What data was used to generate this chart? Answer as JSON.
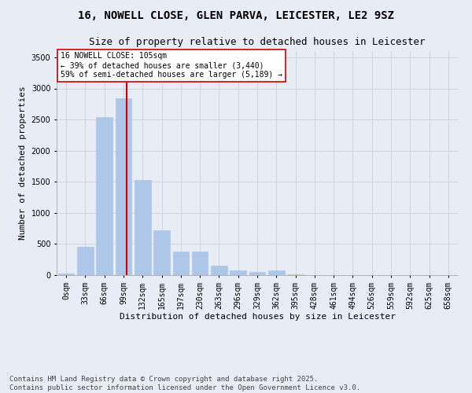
{
  "title": "16, NOWELL CLOSE, GLEN PARVA, LEICESTER, LE2 9SZ",
  "subtitle": "Size of property relative to detached houses in Leicester",
  "xlabel": "Distribution of detached houses by size in Leicester",
  "ylabel": "Number of detached properties",
  "bar_labels": [
    "0sqm",
    "33sqm",
    "66sqm",
    "99sqm",
    "132sqm",
    "165sqm",
    "197sqm",
    "230sqm",
    "263sqm",
    "296sqm",
    "329sqm",
    "362sqm",
    "395sqm",
    "428sqm",
    "461sqm",
    "494sqm",
    "526sqm",
    "559sqm",
    "592sqm",
    "625sqm",
    "658sqm"
  ],
  "bar_values": [
    20,
    460,
    2540,
    2840,
    1530,
    720,
    380,
    380,
    150,
    75,
    50,
    80,
    10,
    5,
    5,
    5,
    5,
    5,
    5,
    5,
    5
  ],
  "bar_color": "#aec6e8",
  "bar_edge_color": "#aec6e8",
  "grid_color": "#c8d0df",
  "background_color": "#e8edf5",
  "vline_x": 3.18,
  "vline_color": "#cc0000",
  "annotation_text": "16 NOWELL CLOSE: 105sqm\n← 39% of detached houses are smaller (3,440)\n59% of semi-detached houses are larger (5,189) →",
  "annotation_box_color": "#ffffff",
  "annotation_box_edge": "#cc0000",
  "footer_line1": "Contains HM Land Registry data © Crown copyright and database right 2025.",
  "footer_line2": "Contains public sector information licensed under the Open Government Licence v3.0.",
  "ylim": [
    0,
    3600
  ],
  "yticks": [
    0,
    500,
    1000,
    1500,
    2000,
    2500,
    3000,
    3500
  ],
  "title_fontsize": 10,
  "subtitle_fontsize": 9,
  "axis_label_fontsize": 8,
  "tick_fontsize": 7,
  "footer_fontsize": 6.5,
  "annotation_fontsize": 7
}
